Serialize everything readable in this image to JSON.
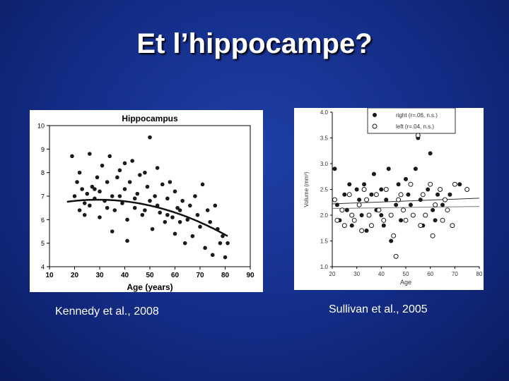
{
  "slide": {
    "title": "Et l’hippocampe?",
    "left_caption": "Kennedy et al., 2008",
    "right_caption": "Sullivan et al., 2005"
  },
  "colors": {
    "background": "#132c86",
    "title": "#ffffff",
    "points": "#1a1a1a",
    "fit_line": "#111111"
  },
  "chart_data": [
    {
      "type": "scatter",
      "title": "Hippocampus",
      "xlabel": "Age (years)",
      "ylabel": "",
      "xlim": [
        10,
        90
      ],
      "ylim": [
        4,
        10
      ],
      "x_ticks": [
        "10",
        "20",
        "30",
        "40",
        "50",
        "60",
        "70",
        "80",
        "90"
      ],
      "y_ticks": [
        "4",
        "5",
        "6",
        "7",
        "8",
        "9",
        "10"
      ],
      "grid": false,
      "legend": "none",
      "fit": {
        "kind": "quadratic",
        "x_range": [
          17,
          81
        ],
        "coefficients": [
          6.35,
          0.034,
          -0.00058
        ]
      },
      "points": [
        [
          19,
          8.7
        ],
        [
          20,
          7.0
        ],
        [
          21,
          7.6
        ],
        [
          22,
          8.0
        ],
        [
          22,
          6.4
        ],
        [
          23,
          7.3
        ],
        [
          24,
          6.2
        ],
        [
          25,
          7.1
        ],
        [
          26,
          8.8
        ],
        [
          26,
          6.6
        ],
        [
          27,
          7.4
        ],
        [
          28,
          6.9
        ],
        [
          29,
          7.8
        ],
        [
          30,
          6.1
        ],
        [
          30,
          7.2
        ],
        [
          31,
          8.3
        ],
        [
          32,
          6.8
        ],
        [
          33,
          7.6
        ],
        [
          34,
          8.7
        ],
        [
          35,
          5.5
        ],
        [
          35,
          7.0
        ],
        [
          36,
          6.4
        ],
        [
          37,
          7.8
        ],
        [
          38,
          8.1
        ],
        [
          39,
          6.7
        ],
        [
          40,
          7.3
        ],
        [
          40,
          8.4
        ],
        [
          41,
          5.1
        ],
        [
          41,
          6.0
        ],
        [
          42,
          7.6
        ],
        [
          43,
          8.5
        ],
        [
          44,
          6.5
        ],
        [
          45,
          7.1
        ],
        [
          46,
          7.9
        ],
        [
          47,
          6.2
        ],
        [
          48,
          8.0
        ],
        [
          49,
          7.4
        ],
        [
          50,
          6.8
        ],
        [
          50,
          9.5
        ],
        [
          51,
          5.6
        ],
        [
          52,
          7.0
        ],
        [
          53,
          8.2
        ],
        [
          54,
          6.3
        ],
        [
          55,
          7.5
        ],
        [
          56,
          5.9
        ],
        [
          57,
          6.9
        ],
        [
          58,
          7.6
        ],
        [
          59,
          6.1
        ],
        [
          60,
          5.4
        ],
        [
          60,
          7.2
        ],
        [
          61,
          6.5
        ],
        [
          62,
          5.9
        ],
        [
          63,
          6.8
        ],
        [
          64,
          5.0
        ],
        [
          65,
          6.0
        ],
        [
          66,
          6.6
        ],
        [
          67,
          5.3
        ],
        [
          68,
          7.0
        ],
        [
          69,
          6.2
        ],
        [
          70,
          5.7
        ],
        [
          71,
          7.5
        ],
        [
          72,
          4.8
        ],
        [
          73,
          6.4
        ],
        [
          74,
          5.9
        ],
        [
          75,
          4.5
        ],
        [
          76,
          6.6
        ],
        [
          77,
          5.6
        ],
        [
          78,
          5.0
        ],
        [
          79,
          5.3
        ],
        [
          80,
          4.4
        ],
        [
          81,
          5.0
        ],
        [
          24,
          6.7
        ],
        [
          28,
          7.3
        ],
        [
          33,
          6.5
        ],
        [
          38,
          7.0
        ],
        [
          44,
          6.9
        ],
        [
          48,
          6.4
        ],
        [
          53,
          6.6
        ],
        [
          57,
          6.2
        ],
        [
          62,
          6.4
        ]
      ]
    },
    {
      "type": "scatter",
      "title": "",
      "xlabel": "Age",
      "ylabel": "Volume (mm³)",
      "xlim": [
        20,
        80
      ],
      "ylim": [
        1.0,
        4.0
      ],
      "x_ticks": [
        "20",
        "30",
        "40",
        "50",
        "60",
        "70",
        "80"
      ],
      "y_ticks": [
        "1.0",
        "1.5",
        "2.0",
        "2.5",
        "3.0",
        "3.5",
        "4.0"
      ],
      "grid": false,
      "legend": "top-right",
      "series": [
        {
          "name": "right (r=.06, n.s.)",
          "marker": "filled",
          "fit": {
            "x_range": [
              20,
              80
            ],
            "y_range": [
              2.22,
              2.33
            ]
          },
          "points": [
            [
              21,
              2.9
            ],
            [
              22,
              2.2
            ],
            [
              23,
              1.9
            ],
            [
              25,
              2.4
            ],
            [
              26,
              2.1
            ],
            [
              27,
              2.6
            ],
            [
              28,
              1.8
            ],
            [
              30,
              2.5
            ],
            [
              31,
              2.3
            ],
            [
              32,
              2.0
            ],
            [
              33,
              2.6
            ],
            [
              34,
              1.7
            ],
            [
              36,
              2.4
            ],
            [
              37,
              2.8
            ],
            [
              38,
              2.1
            ],
            [
              40,
              2.5
            ],
            [
              41,
              1.8
            ],
            [
              42,
              2.3
            ],
            [
              43,
              2.9
            ],
            [
              44,
              1.5
            ],
            [
              46,
              2.2
            ],
            [
              47,
              2.6
            ],
            [
              48,
              1.9
            ],
            [
              50,
              2.7
            ],
            [
              51,
              2.4
            ],
            [
              53,
              2.0
            ],
            [
              54,
              2.9
            ],
            [
              55,
              3.5
            ],
            [
              56,
              2.3
            ],
            [
              57,
              1.8
            ],
            [
              59,
              2.5
            ],
            [
              60,
              3.2
            ],
            [
              61,
              2.1
            ],
            [
              63,
              2.4
            ],
            [
              65,
              2.2
            ],
            [
              68,
              2.4
            ],
            [
              72,
              2.6
            ],
            [
              40,
              2.0
            ],
            [
              52,
              2.2
            ],
            [
              62,
              1.9
            ]
          ]
        },
        {
          "name": "left (r=.04, n.s.)",
          "marker": "open",
          "fit": {
            "x_range": [
              20,
              80
            ],
            "y_range": [
              2.13,
              2.17
            ]
          },
          "points": [
            [
              21,
              2.3
            ],
            [
              22,
              1.9
            ],
            [
              24,
              2.1
            ],
            [
              25,
              1.8
            ],
            [
              27,
              2.4
            ],
            [
              28,
              2.0
            ],
            [
              29,
              1.9
            ],
            [
              31,
              2.2
            ],
            [
              32,
              1.7
            ],
            [
              34,
              2.3
            ],
            [
              35,
              2.0
            ],
            [
              36,
              1.8
            ],
            [
              38,
              2.4
            ],
            [
              39,
              2.1
            ],
            [
              41,
              1.9
            ],
            [
              42,
              2.5
            ],
            [
              44,
              2.0
            ],
            [
              45,
              1.6
            ],
            [
              46,
              1.2
            ],
            [
              47,
              2.3
            ],
            [
              49,
              2.1
            ],
            [
              50,
              1.9
            ],
            [
              52,
              2.6
            ],
            [
              53,
              2.0
            ],
            [
              55,
              3.55
            ],
            [
              56,
              1.8
            ],
            [
              57,
              2.4
            ],
            [
              58,
              2.0
            ],
            [
              60,
              2.6
            ],
            [
              61,
              1.6
            ],
            [
              62,
              2.2
            ],
            [
              64,
              2.5
            ],
            [
              65,
              1.9
            ],
            [
              67,
              2.1
            ],
            [
              69,
              1.8
            ],
            [
              70,
              2.6
            ],
            [
              75,
              2.5
            ],
            [
              33,
              2.5
            ],
            [
              48,
              2.4
            ],
            [
              66,
              2.3
            ]
          ]
        }
      ]
    }
  ]
}
